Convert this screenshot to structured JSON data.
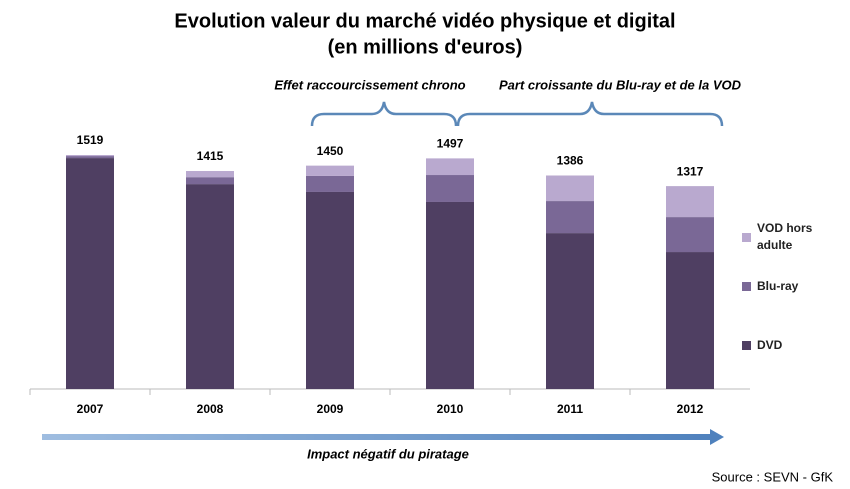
{
  "chart_data": {
    "type": "stacked_bar",
    "title": "Evolution valeur du marché vidéo physique et digital",
    "subtitle": "(en millions d'euros)",
    "categories": [
      "2007",
      "2008",
      "2009",
      "2010",
      "2011",
      "2012"
    ],
    "series": [
      {
        "name": "DVD",
        "color": "#4f3f62",
        "values": [
          1499,
          1330,
          1279,
          1214,
          1012,
          889
        ]
      },
      {
        "name": "Blu-ray",
        "color": "#7a6896",
        "values": [
          13,
          45,
          104,
          175,
          208,
          227
        ]
      },
      {
        "name": "VOD hors adulte",
        "color": "#b9a9cf",
        "values": [
          7,
          40,
          67,
          108,
          166,
          201
        ]
      }
    ],
    "totals": [
      1519,
      1415,
      1450,
      1497,
      1386,
      1317
    ],
    "annotations": [
      "Effet raccourcissement chrono",
      "Part croissante du Blu-ray et de la VOD",
      "Impact négatif du piratage"
    ],
    "source": "Source : SEVN - GfK"
  }
}
